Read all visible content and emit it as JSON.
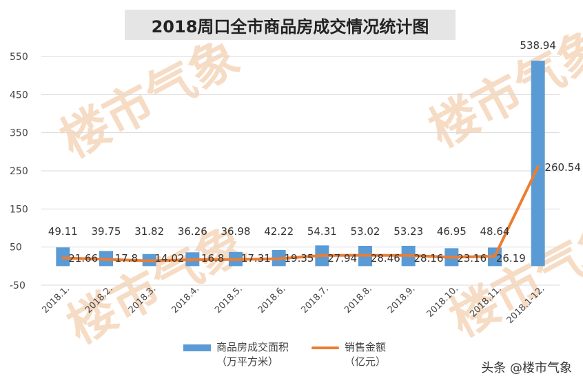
{
  "chart_data": {
    "type": "bar+line",
    "title": "2018周口全市商品房成交情况统计图",
    "categories": [
      "2018.1.",
      "2018.2.",
      "2018.3.",
      "2018.4.",
      "2018.5.",
      "2018.6.",
      "2018.7.",
      "2018.8.",
      "2018.9.",
      "2018.10.",
      "2018.11.",
      "2018.1-12."
    ],
    "series": [
      {
        "name": "商品房成交面积（万平方米）",
        "name_line1": "商品房成交面积",
        "name_line2": "（万平方米）",
        "kind": "bar",
        "color": "#5b9bd5",
        "values": [
          49.11,
          39.75,
          31.82,
          36.26,
          36.98,
          42.22,
          54.31,
          53.02,
          53.23,
          46.95,
          48.64,
          538.94
        ]
      },
      {
        "name": "销售金额（亿元）",
        "name_line1": "销售金额",
        "name_line2": "（亿元）",
        "kind": "line",
        "color": "#ed7d31",
        "values": [
          21.66,
          17.8,
          14.02,
          16.8,
          17.31,
          19.35,
          27.94,
          28.46,
          28.16,
          23.16,
          26.19,
          260.54
        ],
        "labels": [
          "21.66",
          "17.8",
          "14.02",
          "16.8",
          "17.31",
          "19.35",
          "27.94",
          "28.46",
          "28.16",
          "23.16",
          "26.19",
          "260.54"
        ]
      }
    ],
    "yticks": [
      -50,
      50,
      150,
      250,
      350,
      450,
      550
    ],
    "ylim": [
      -50,
      600
    ],
    "grid": true,
    "legend": "bottom"
  },
  "watermark": "楼市气象",
  "credit": "头条 @楼市气象"
}
